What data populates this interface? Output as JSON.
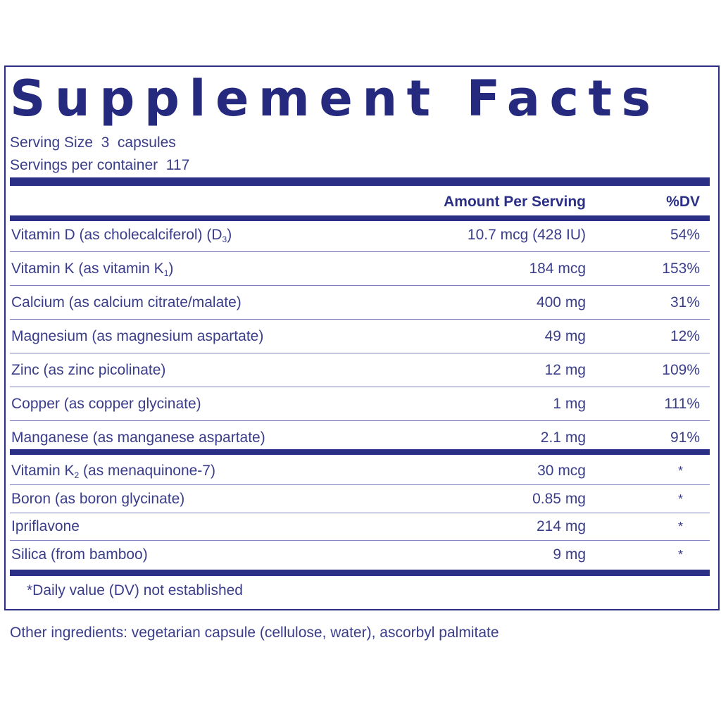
{
  "title": "Supplement Facts",
  "serving": {
    "size_label": "Serving Size",
    "size_value": "3",
    "size_unit": "capsules",
    "per_container_label": "Servings per container",
    "per_container_value": "117"
  },
  "table": {
    "header_amount": "Amount Per Serving",
    "header_dv": "%DV",
    "group1": [
      {
        "name_pre": "Vitamin D (as cholecalciferol) (D",
        "sub": "3",
        "name_post": ")",
        "amount": "10.7 mcg (428 IU)",
        "dv": "54%"
      },
      {
        "name_pre": "Vitamin K (as vitamin K",
        "sub": "1",
        "name_post": ")",
        "amount": "184 mcg",
        "dv": "153%"
      },
      {
        "name_pre": "Calcium (as calcium citrate/malate)",
        "sub": "",
        "name_post": "",
        "amount": "400 mg",
        "dv": "31%"
      },
      {
        "name_pre": "Magnesium (as magnesium aspartate)",
        "sub": "",
        "name_post": "",
        "amount": "49 mg",
        "dv": "12%"
      },
      {
        "name_pre": "Zinc (as zinc picolinate)",
        "sub": "",
        "name_post": "",
        "amount": "12 mg",
        "dv": "109%"
      },
      {
        "name_pre": "Copper (as copper glycinate)",
        "sub": "",
        "name_post": "",
        "amount": "1 mg",
        "dv": "111%"
      },
      {
        "name_pre": "Manganese (as manganese aspartate)",
        "sub": "",
        "name_post": "",
        "amount": "2.1 mg",
        "dv": "91%"
      }
    ],
    "group2": [
      {
        "name_pre": "Vitamin K",
        "sub": "2",
        "name_post": " (as menaquinone-7)",
        "amount": "30 mcg",
        "dv": "*"
      },
      {
        "name_pre": "Boron (as boron glycinate)",
        "sub": "",
        "name_post": "",
        "amount": "0.85 mg",
        "dv": "*"
      },
      {
        "name_pre": "Ipriflavone",
        "sub": "",
        "name_post": "",
        "amount": "214 mg",
        "dv": "*"
      },
      {
        "name_pre": "Silica (from bamboo)",
        "sub": "",
        "name_post": "",
        "amount": "9 mg",
        "dv": "*"
      }
    ]
  },
  "footnote": "*Daily value (DV) not established",
  "other_ingredients": "Other ingredients: vegetarian capsule (cellulose, water), ascorbyl palmitate",
  "colors": {
    "ink": "#2b2f86",
    "text": "#3a3d8a",
    "rule": "#7f82b8"
  }
}
